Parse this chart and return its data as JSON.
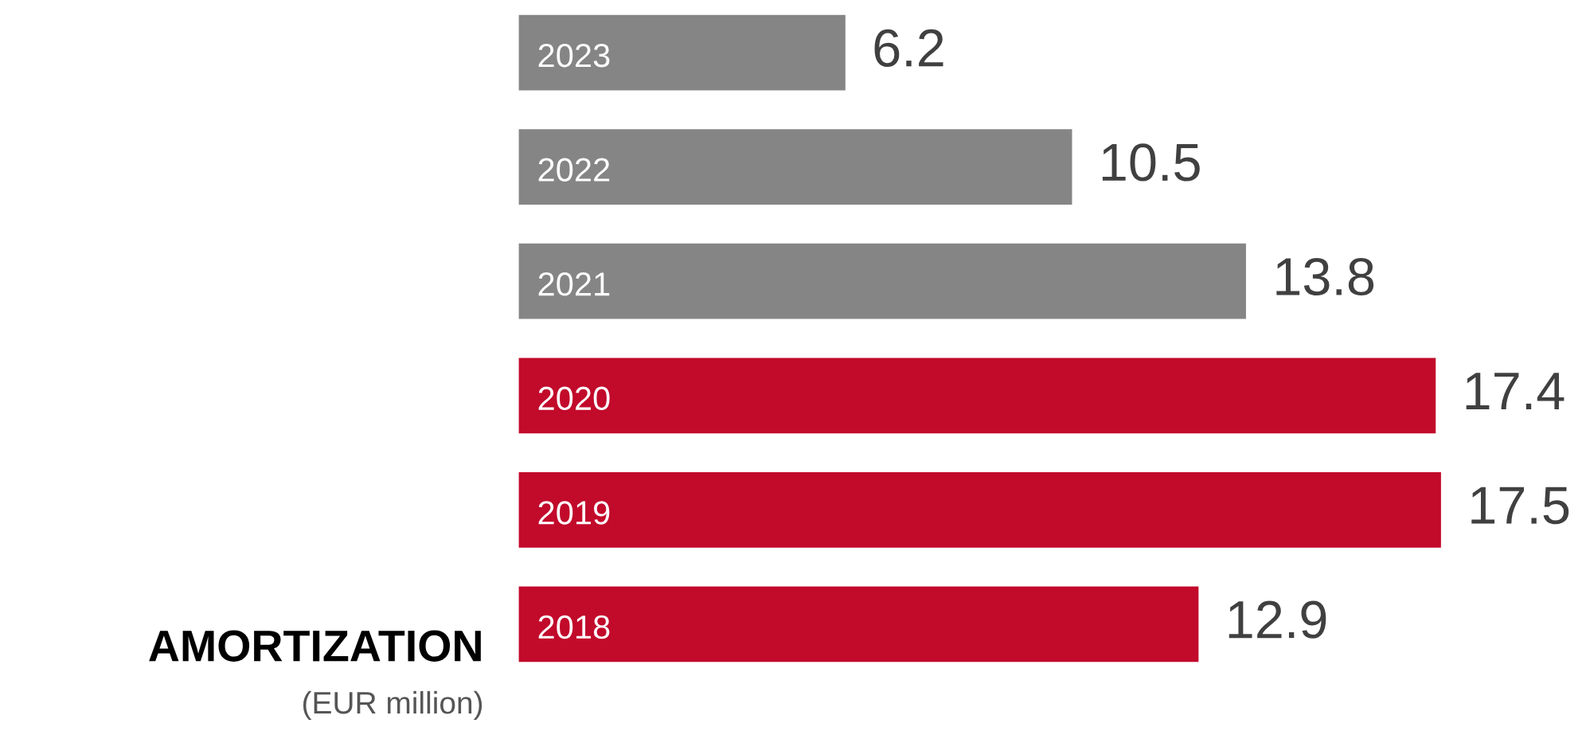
{
  "chart_data": {
    "type": "bar",
    "orientation": "horizontal",
    "title": "AMORTIZATION",
    "subtitle": "(EUR million)",
    "categories": [
      "2023",
      "2022",
      "2021",
      "2020",
      "2019",
      "2018"
    ],
    "values": [
      6.2,
      10.5,
      13.8,
      17.4,
      17.5,
      12.9
    ],
    "colors": [
      "#858585",
      "#858585",
      "#858585",
      "#c20a2b",
      "#c20a2b",
      "#c20a2b"
    ],
    "data_labels": true,
    "tick_labels": false
  }
}
